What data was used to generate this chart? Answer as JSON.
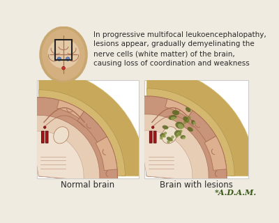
{
  "bg_color": "#f0ebe0",
  "title_text_lines": [
    "In progressive multifocal leukoencephalopathy,",
    "lesions appear, gradually demyelinating the",
    "nerve cells (white matter) of the brain,",
    "causing loss of coordination and weakness"
  ],
  "label_normal": "Normal brain",
  "label_lesion": "Brain with lesions",
  "adam_text": "*A.D.A.M.",
  "text_color": "#2a2a2a",
  "skull_outer_color": "#c8a85a",
  "skull_inner_color": "#d4b870",
  "brain_pink_color": "#c8957a",
  "brain_light_pink": "#ddb090",
  "brain_pale": "#e8cdb5",
  "brain_white_matter": "#f0e0d0",
  "brain_cream": "#ede0cc",
  "sulci_color": "#aa7055",
  "gyri_fill": "#d4a080",
  "lesion_dark": "#5a6820",
  "lesion_mid": "#7a8a30",
  "lesion_light": "#b0bc6a",
  "red_vessel_color": "#aa1515",
  "red_vessel_dark": "#661010",
  "panel_border": "#cccccc",
  "box_outline": "#222222",
  "adam_green": "#3a5a1a",
  "thumb_brain_outer": "#c8a870",
  "thumb_brain_fill": "#d4b080",
  "thumb_inner_fill": "#e8d0b0",
  "thumb_ventricle": "#6688bb",
  "thumb_red": "#cc3333"
}
